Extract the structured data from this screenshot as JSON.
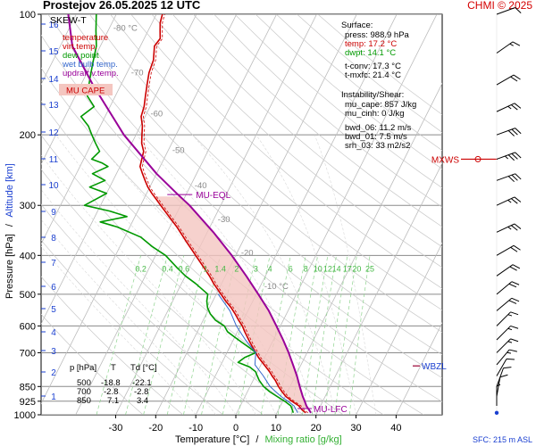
{
  "header": {
    "title": "Prostejov   26.05.2025 12 UTC",
    "copyright": "CHMI © 2025"
  },
  "chart_data": {
    "type": "skew-t",
    "chart_label": "SKEW-T",
    "y_left_label": "Pressure [hPa]",
    "y_sep": "/",
    "y_right_label": "Altitude [km]",
    "x_label": "Temperature [°C]",
    "x_sep": "/",
    "x_label_2": "Mixing ratio [g/kg]",
    "sfc_label": "SFC: 215 m ASL",
    "p_ticks": [
      {
        "p": 100,
        "label": "100"
      },
      {
        "p": 200,
        "label": "200"
      },
      {
        "p": 300,
        "label": "300"
      },
      {
        "p": 400,
        "label": "400"
      },
      {
        "p": 500,
        "label": "500"
      },
      {
        "p": 600,
        "label": "600"
      },
      {
        "p": 700,
        "label": "700"
      },
      {
        "p": 850,
        "label": "850"
      },
      {
        "p": 925,
        "label": "925"
      },
      {
        "p": 1000,
        "label": "1000"
      }
    ],
    "t_ticks": [
      "-30",
      "-20",
      "-10",
      "0",
      "10",
      "20",
      "30",
      "40"
    ],
    "t_tick_values": [
      -30,
      -20,
      -10,
      0,
      10,
      20,
      30,
      40
    ],
    "isotherm_labels": [
      {
        "t": -80,
        "p": 110,
        "label": "-80 °C"
      },
      {
        "t": -70,
        "p": 142,
        "label": "-70"
      },
      {
        "t": -60,
        "p": 180,
        "label": "-60"
      },
      {
        "t": -50,
        "p": 222,
        "label": "-50"
      },
      {
        "t": -40,
        "p": 272,
        "label": "-40"
      },
      {
        "t": -30,
        "p": 330,
        "label": "-30"
      },
      {
        "t": -20,
        "p": 400,
        "label": "-20"
      },
      {
        "t": -10,
        "p": 485,
        "label": "-10 °C"
      }
    ],
    "altitude_ticks": [
      {
        "km": "1",
        "y": 444
      },
      {
        "km": "2",
        "y": 417
      },
      {
        "km": "3",
        "y": 393
      },
      {
        "km": "4",
        "y": 372
      },
      {
        "km": "5",
        "y": 346
      },
      {
        "km": "6",
        "y": 321
      },
      {
        "km": "7",
        "y": 294
      },
      {
        "km": "8",
        "y": 266
      },
      {
        "km": "9",
        "y": 237
      },
      {
        "km": "10",
        "y": 207
      },
      {
        "km": "11",
        "y": 178
      },
      {
        "km": "12",
        "y": 148
      },
      {
        "km": "13",
        "y": 117
      },
      {
        "km": "14",
        "y": 88
      },
      {
        "km": "15",
        "y": 57
      },
      {
        "km": "16",
        "y": 27
      }
    ],
    "mixing_ratio_labels": [
      "0.2",
      "0.4",
      "0.6",
      "1",
      "1.4",
      "2",
      "3",
      "4",
      "6",
      "8",
      "10",
      "12",
      "14",
      "17",
      "20",
      "25"
    ],
    "mixing_ratio_values": [
      0.2,
      0.4,
      0.6,
      1,
      1.4,
      2,
      3,
      4,
      6,
      8,
      10,
      12,
      14,
      17,
      20,
      25
    ],
    "legend": [
      {
        "label": "temperature",
        "color": "#cc0000"
      },
      {
        "label": "virt.temp.",
        "color": "#cc0000"
      },
      {
        "label": "dew point",
        "color": "#009900"
      },
      {
        "label": "wet bulb temp.",
        "color": "#3366cc"
      },
      {
        "label": "updraft v.temp.",
        "color": "#990099"
      }
    ],
    "mu_cape_label": "MU CAPE",
    "series": [
      {
        "name": "temperature",
        "color": "#cc0000",
        "points": [
          [
            988.9,
            17.2
          ],
          [
            970,
            15.8
          ],
          [
            950,
            14.6
          ],
          [
            925,
            12.3
          ],
          [
            900,
            10.2
          ],
          [
            875,
            8.6
          ],
          [
            850,
            7.1
          ],
          [
            820,
            5.5
          ],
          [
            800,
            4.2
          ],
          [
            780,
            3.0
          ],
          [
            750,
            0.8
          ],
          [
            720,
            -1.5
          ],
          [
            700,
            -2.8
          ],
          [
            660,
            -5.5
          ],
          [
            620,
            -8.2
          ],
          [
            600,
            -9.5
          ],
          [
            580,
            -11.2
          ],
          [
            560,
            -12.8
          ],
          [
            540,
            -14.6
          ],
          [
            520,
            -16.8
          ],
          [
            500,
            -18.8
          ],
          [
            470,
            -22.0
          ],
          [
            450,
            -24.0
          ],
          [
            430,
            -26.3
          ],
          [
            400,
            -30.0
          ],
          [
            370,
            -34.0
          ],
          [
            340,
            -38.2
          ],
          [
            320,
            -41.5
          ],
          [
            300,
            -45.0
          ],
          [
            290,
            -46.8
          ],
          [
            280,
            -48.7
          ],
          [
            270,
            -50.5
          ],
          [
            260,
            -52.0
          ],
          [
            250,
            -53.5
          ],
          [
            240,
            -55.0
          ],
          [
            230,
            -55.5
          ],
          [
            220,
            -56.0
          ],
          [
            210,
            -57.5
          ],
          [
            200,
            -58.5
          ],
          [
            190,
            -59.5
          ],
          [
            180,
            -61.0
          ],
          [
            170,
            -61.5
          ],
          [
            160,
            -62.5
          ],
          [
            150,
            -63.5
          ],
          [
            140,
            -64.5
          ],
          [
            130,
            -65.0
          ],
          [
            120,
            -66.5
          ],
          [
            115,
            -66.0
          ],
          [
            110,
            -67.0
          ],
          [
            105,
            -68.0
          ],
          [
            100,
            -68.5
          ]
        ]
      },
      {
        "name": "dew point",
        "color": "#009900",
        "points": [
          [
            988.9,
            14.1
          ],
          [
            970,
            13.4
          ],
          [
            950,
            12.6
          ],
          [
            925,
            10.5
          ],
          [
            900,
            8.0
          ],
          [
            875,
            5.5
          ],
          [
            850,
            3.4
          ],
          [
            820,
            1.5
          ],
          [
            800,
            0.5
          ],
          [
            780,
            -0.5
          ],
          [
            760,
            -2.5
          ],
          [
            740,
            -6.0
          ],
          [
            720,
            -5.0
          ],
          [
            700,
            -2.8
          ],
          [
            680,
            -5.0
          ],
          [
            660,
            -7.5
          ],
          [
            640,
            -10.0
          ],
          [
            620,
            -12.5
          ],
          [
            600,
            -14.0
          ],
          [
            580,
            -17.0
          ],
          [
            560,
            -19.0
          ],
          [
            540,
            -20.5
          ],
          [
            520,
            -21.5
          ],
          [
            500,
            -22.1
          ],
          [
            470,
            -26.5
          ],
          [
            450,
            -30.0
          ],
          [
            430,
            -33.0
          ],
          [
            400,
            -37.5
          ],
          [
            380,
            -42.0
          ],
          [
            360,
            -46.0
          ],
          [
            340,
            -53.0
          ],
          [
            330,
            -58.0
          ],
          [
            320,
            -52.0
          ],
          [
            310,
            -57.0
          ],
          [
            300,
            -64.0
          ],
          [
            290,
            -62.0
          ],
          [
            280,
            -60.0
          ],
          [
            270,
            -65.0
          ],
          [
            260,
            -62.0
          ],
          [
            250,
            -66.0
          ],
          [
            240,
            -63.0
          ],
          [
            235,
            -65.0
          ],
          [
            230,
            -68.0
          ],
          [
            220,
            -67.0
          ],
          [
            210,
            -69.0
          ],
          [
            200,
            -71.0
          ],
          [
            190,
            -73.0
          ],
          [
            180,
            -76.0
          ],
          [
            170,
            -74.0
          ],
          [
            160,
            -77.0
          ],
          [
            150,
            -78.0
          ],
          [
            140,
            -79.0
          ],
          [
            130,
            -80.0
          ],
          [
            120,
            -81.0
          ],
          [
            110,
            -83.0
          ],
          [
            100,
            -85.0
          ]
        ]
      },
      {
        "name": "wet bulb temp.",
        "color": "#3366cc",
        "points": [
          [
            988.9,
            15.2
          ],
          [
            950,
            13.4
          ],
          [
            925,
            11.3
          ],
          [
            900,
            9.0
          ],
          [
            875,
            7.0
          ],
          [
            850,
            5.0
          ],
          [
            800,
            2.0
          ],
          [
            750,
            -1.5
          ],
          [
            700,
            -2.8
          ],
          [
            650,
            -7.0
          ],
          [
            600,
            -11.0
          ],
          [
            550,
            -14.5
          ],
          [
            500,
            -19.5
          ]
        ]
      },
      {
        "name": "updraft v.temp.",
        "color": "#990099",
        "points": [
          [
            988.9,
            18.5
          ],
          [
            950,
            16.5
          ],
          [
            925,
            15.5
          ],
          [
            900,
            14.4
          ],
          [
            850,
            12.4
          ],
          [
            800,
            10.4
          ],
          [
            750,
            8.0
          ],
          [
            700,
            5.4
          ],
          [
            650,
            2.4
          ],
          [
            600,
            -1.0
          ],
          [
            550,
            -4.8
          ],
          [
            500,
            -9.5
          ],
          [
            450,
            -14.8
          ],
          [
            400,
            -21.0
          ],
          [
            350,
            -28.5
          ],
          [
            300,
            -37.8
          ],
          [
            280,
            -42.5
          ],
          [
            250,
            -50.0
          ],
          [
            200,
            -63.0
          ],
          [
            150,
            -77.0
          ],
          [
            120,
            -87.0
          ],
          [
            100,
            -92.0
          ]
        ]
      }
    ],
    "markers": [
      {
        "label": "MU-EQL",
        "p": 282
      },
      {
        "label": "MU-LFC",
        "p": 965
      },
      {
        "label": "WBZL",
        "p": 755
      },
      {
        "label": "MXWS",
        "p": 230
      }
    ],
    "info": {
      "surface_title": "Surface:",
      "press": "press: 988.9 hPa",
      "temp": "temp: 17.2 °C",
      "dwpt": "dwpt: 14.1 °C",
      "tconv": "t-conv: 17.3 °C",
      "tmxfc": "t-mxfc: 21.4 °C",
      "inst_title": "Instability/Shear:",
      "mu_cape": "mu_cape: 857 J/kg",
      "mu_cinh": "mu_cinh: 0 J/kg",
      "bwd06": "bwd_06: 11.2 m/s",
      "bwd01": "bwd_01: 7.5 m/s",
      "srh03": "srh_03: 33 m2/s2"
    },
    "ptd_table": {
      "headers": [
        "p [hPa]",
        "T",
        "Td [°C]"
      ],
      "rows": [
        [
          "500",
          "-18.8",
          "-22.1"
        ],
        [
          "700",
          "-2.8",
          "-2.8"
        ],
        [
          "850",
          "7.1",
          "3.4"
        ]
      ]
    },
    "wind_barbs": [
      {
        "p": 100,
        "dir": 250,
        "spd": 10
      },
      {
        "p": 125,
        "dir": 235,
        "spd": 15
      },
      {
        "p": 150,
        "dir": 240,
        "spd": 20
      },
      {
        "p": 175,
        "dir": 245,
        "spd": 25
      },
      {
        "p": 200,
        "dir": 250,
        "spd": 30
      },
      {
        "p": 230,
        "dir": 250,
        "spd": 35
      },
      {
        "p": 260,
        "dir": 250,
        "spd": 30
      },
      {
        "p": 300,
        "dir": 245,
        "spd": 25
      },
      {
        "p": 350,
        "dir": 245,
        "spd": 25
      },
      {
        "p": 400,
        "dir": 240,
        "spd": 20
      },
      {
        "p": 450,
        "dir": 235,
        "spd": 20
      },
      {
        "p": 500,
        "dir": 230,
        "spd": 20
      },
      {
        "p": 550,
        "dir": 230,
        "spd": 20
      },
      {
        "p": 600,
        "dir": 225,
        "spd": 15
      },
      {
        "p": 650,
        "dir": 225,
        "spd": 15
      },
      {
        "p": 700,
        "dir": 225,
        "spd": 15
      },
      {
        "p": 750,
        "dir": 220,
        "spd": 15
      },
      {
        "p": 800,
        "dir": 210,
        "spd": 10
      },
      {
        "p": 850,
        "dir": 200,
        "spd": 10
      },
      {
        "p": 900,
        "dir": 190,
        "spd": 10
      },
      {
        "p": 950,
        "dir": 180,
        "spd": 5
      }
    ]
  }
}
